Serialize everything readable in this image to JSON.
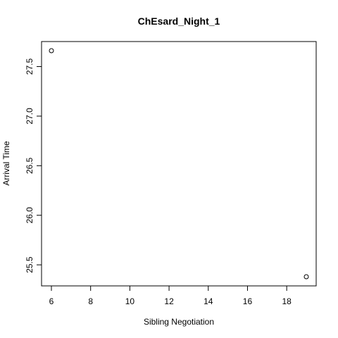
{
  "chart_data": {
    "type": "scatter",
    "title": "ChEsard_Night_1",
    "xlabel": "Sibling Negotiation",
    "ylabel": "Arrival Time",
    "xlim": [
      6,
      19
    ],
    "ylim": [
      25.38,
      27.66
    ],
    "xticks": [
      6,
      8,
      10,
      12,
      14,
      16,
      18
    ],
    "yticks": [
      25.5,
      26.0,
      26.5,
      27.0,
      27.5
    ],
    "xtick_labels": [
      "6",
      "8",
      "10",
      "12",
      "14",
      "16",
      "18"
    ],
    "ytick_labels": [
      "25.5",
      "26.0",
      "26.5",
      "27.0",
      "27.5"
    ],
    "grid": false,
    "points": [
      {
        "x": 6,
        "y": 27.66
      },
      {
        "x": 19,
        "y": 25.38
      }
    ],
    "marker": "open-circle",
    "color": "#000000"
  }
}
